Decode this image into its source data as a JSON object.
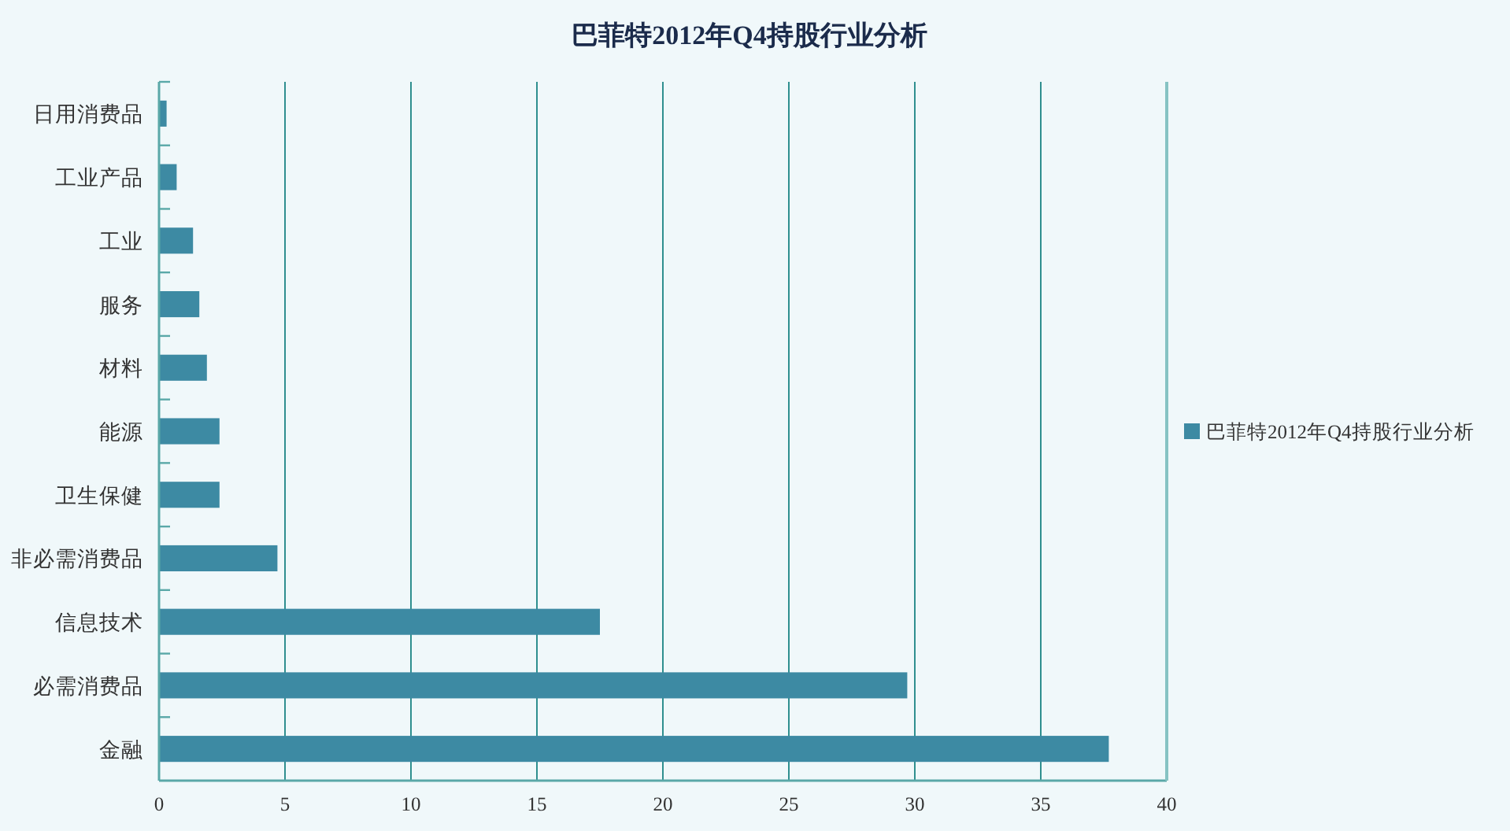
{
  "chart_data": {
    "type": "bar",
    "orientation": "horizontal",
    "title": "巴菲特2012年Q4持股行业分析",
    "categories": [
      "日用消费品",
      "工业产品",
      "工业",
      "服务",
      "材料",
      "能源",
      "卫生保健",
      "非必需消费品",
      "信息技术",
      "必需消费品",
      "金融"
    ],
    "series": [
      {
        "name": "巴菲特2012年Q4持股行业分析",
        "color": "#3d8aa3",
        "values": [
          0.3,
          0.7,
          1.35,
          1.6,
          1.9,
          2.4,
          2.4,
          4.7,
          17.5,
          29.7,
          37.7
        ]
      }
    ],
    "xlim": [
      0,
      40
    ],
    "xticks": [
      0,
      5,
      10,
      15,
      20,
      25,
      30,
      35,
      40
    ],
    "grid": "x",
    "legend": "right"
  }
}
